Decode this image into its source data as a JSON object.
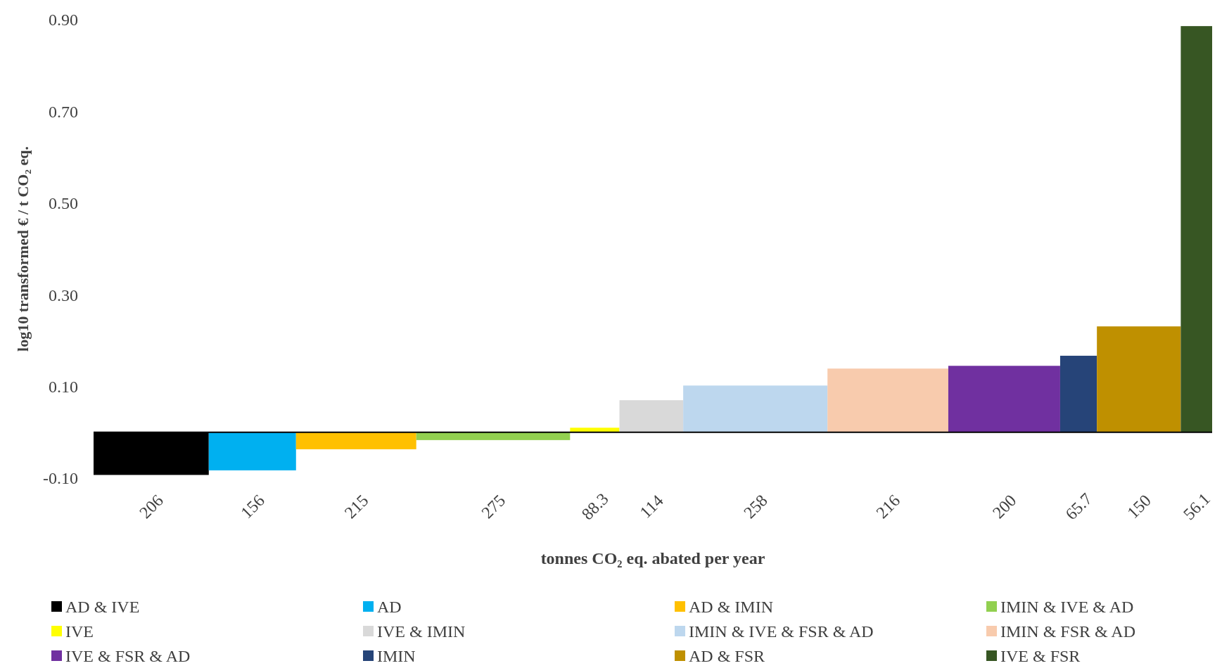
{
  "chart_data": {
    "type": "bar",
    "xlabel": "tonnes CO₂ eq. abated per year",
    "ylabel": "log10 transformed € / t CO₂ eq.",
    "categories": [
      "206",
      "156",
      "215",
      "275",
      "88.3",
      "114",
      "258",
      "216",
      "200",
      "65.7",
      "150",
      "56.1"
    ],
    "series": [
      {
        "name": "AD & IVE",
        "color": "#000000",
        "values": [
          -0.093,
          null,
          null,
          null,
          null,
          null,
          null,
          null,
          null,
          null,
          null,
          null
        ]
      },
      {
        "name": "AD",
        "color": "#00b0f0",
        "values": [
          null,
          -0.083,
          null,
          null,
          null,
          null,
          null,
          null,
          null,
          null,
          null,
          null
        ]
      },
      {
        "name": "AD & IMIN",
        "color": "#ffc000",
        "values": [
          null,
          null,
          -0.037,
          null,
          null,
          null,
          null,
          null,
          null,
          null,
          null,
          null
        ]
      },
      {
        "name": "IMIN & IVE & AD",
        "color": "#92d050",
        "values": [
          null,
          null,
          null,
          -0.017,
          null,
          null,
          null,
          null,
          null,
          null,
          null,
          null
        ]
      },
      {
        "name": "IVE",
        "color": "#ffff00",
        "values": [
          null,
          null,
          null,
          null,
          0.01,
          null,
          null,
          null,
          null,
          null,
          null,
          null
        ]
      },
      {
        "name": "IVE & IMIN",
        "color": "#d9d9d9",
        "values": [
          null,
          null,
          null,
          null,
          null,
          0.07,
          null,
          null,
          null,
          null,
          null,
          null
        ]
      },
      {
        "name": "IMIN & IVE & FSR & AD",
        "color": "#bdd7ee",
        "values": [
          null,
          null,
          null,
          null,
          null,
          null,
          0.102,
          null,
          null,
          null,
          null,
          null
        ]
      },
      {
        "name": "IMIN & FSR & AD",
        "color": "#f8cbad",
        "values": [
          null,
          null,
          null,
          null,
          null,
          null,
          null,
          0.139,
          null,
          null,
          null,
          null
        ]
      },
      {
        "name": "IVE & FSR & AD",
        "color": "#7030a0",
        "values": [
          null,
          null,
          null,
          null,
          null,
          null,
          null,
          null,
          0.145,
          null,
          null,
          null
        ]
      },
      {
        "name": "IMIN",
        "color": "#264478",
        "values": [
          null,
          null,
          null,
          null,
          null,
          null,
          null,
          null,
          null,
          0.167,
          null,
          null
        ]
      },
      {
        "name": "AD & FSR",
        "color": "#bf9000",
        "values": [
          null,
          null,
          null,
          null,
          null,
          null,
          null,
          null,
          null,
          null,
          0.231,
          null
        ]
      },
      {
        "name": "IVE & FSR",
        "color": "#375623",
        "values": [
          null,
          null,
          null,
          null,
          null,
          null,
          null,
          null,
          null,
          null,
          null,
          0.886
        ]
      }
    ],
    "ylim": [
      -0.1,
      0.9
    ],
    "yticks": [
      {
        "value": -0.1,
        "label": "-0.10"
      },
      {
        "value": 0.1,
        "label": "0.10"
      },
      {
        "value": 0.3,
        "label": "0.30"
      },
      {
        "value": 0.5,
        "label": "0.50"
      },
      {
        "value": 0.7,
        "label": "0.70"
      },
      {
        "value": 0.9,
        "label": "0.90"
      }
    ],
    "legend": "bottom"
  }
}
